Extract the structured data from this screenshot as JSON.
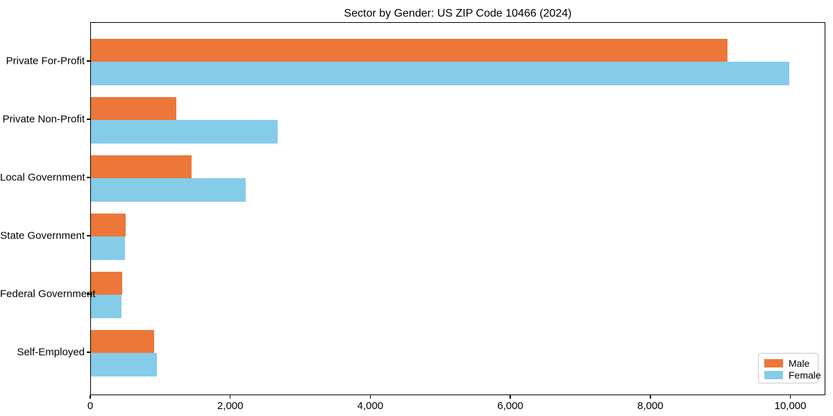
{
  "chart_data": {
    "type": "bar",
    "orientation": "horizontal",
    "title": "Sector by Gender: US ZIP Code 10466 (2024)",
    "categories": [
      "Private For-Profit",
      "Private Non-Profit",
      "Local Government",
      "State Government",
      "Federal Government",
      "Self-Employed"
    ],
    "series": [
      {
        "name": "Male",
        "color": "#ec7739",
        "values": [
          9090,
          1220,
          1440,
          495,
          445,
          900
        ]
      },
      {
        "name": "Female",
        "color": "#85cce8",
        "values": [
          9970,
          2665,
          2215,
          485,
          435,
          940
        ]
      }
    ],
    "xlabel": "",
    "ylabel": "",
    "xlim": [
      0,
      10500
    ],
    "xticks": [
      0,
      2000,
      4000,
      6000,
      8000,
      10000
    ],
    "xtick_labels": [
      "0",
      "2,000",
      "4,000",
      "6,000",
      "8,000",
      "10,000"
    ],
    "grid": false,
    "legend": {
      "position": "lower right",
      "entries": [
        "Male",
        "Female"
      ]
    },
    "colors": {
      "axis": "#000000",
      "text": "#000000",
      "legend_border": "#c9c9c9",
      "background": "#ffffff"
    }
  }
}
